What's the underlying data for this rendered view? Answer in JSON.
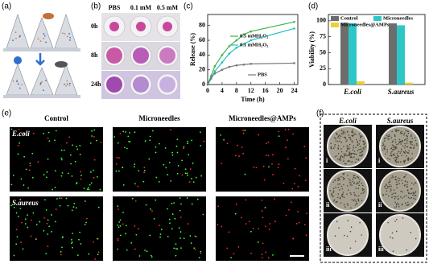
{
  "panel_labels": [
    "(a)",
    "(b)",
    "(c)",
    "(d)",
    "(e)",
    "(f)"
  ],
  "panel_b": {
    "columns": [
      "PBS",
      "0.1 mM",
      "0.5 mM"
    ],
    "rows": [
      "0h",
      "8h",
      "24h"
    ]
  },
  "chart_data": [
    {
      "type": "line",
      "x_label": "Time (h)",
      "y_label": "Release (%)",
      "xlim": [
        0,
        25
      ],
      "xticks": [
        0,
        4,
        8,
        12,
        16,
        20,
        24
      ],
      "ylim": [
        0,
        95
      ],
      "yticks": [
        0,
        20,
        40,
        60,
        80
      ],
      "x": [
        0,
        1,
        2,
        4,
        6,
        8,
        10,
        12,
        24
      ],
      "series": [
        {
          "name": "0.5 mMH₂O₂",
          "color": "#3cb44b",
          "values": [
            0,
            12,
            25,
            40,
            52,
            60,
            68,
            72,
            85
          ]
        },
        {
          "name": "0.1 mMH₂O₂",
          "color": "#1fbfbf",
          "values": [
            0,
            8,
            18,
            30,
            42,
            50,
            55,
            60,
            76
          ]
        },
        {
          "name": "PBS",
          "color": "#777777",
          "values": [
            0,
            10,
            15,
            20,
            24,
            26,
            27,
            28,
            29
          ]
        }
      ]
    },
    {
      "type": "bar",
      "y_label": "Viability (%)",
      "ylim": [
        0,
        110
      ],
      "yticks": [
        0,
        25,
        50,
        75,
        100
      ],
      "categories": [
        "E.coli",
        "S.aureus"
      ],
      "series": [
        {
          "name": "Control",
          "color": "#6d6d6d",
          "values": [
            97,
            96
          ]
        },
        {
          "name": "Microneedles",
          "color": "#2ec7c7",
          "values": [
            96,
            93
          ]
        },
        {
          "name": "Microneedles@AMPs",
          "color": "#e8d23a",
          "values": [
            5,
            3
          ]
        }
      ]
    }
  ],
  "panel_e": {
    "columns": [
      "Control",
      "Microneedles",
      "Microneedles@AMPs"
    ],
    "rows": [
      "E.coli",
      "S.aureus"
    ]
  },
  "panel_f": {
    "columns": [
      "E.coli",
      "S.aureus"
    ],
    "rows": [
      "i",
      "ii",
      "iii"
    ]
  }
}
